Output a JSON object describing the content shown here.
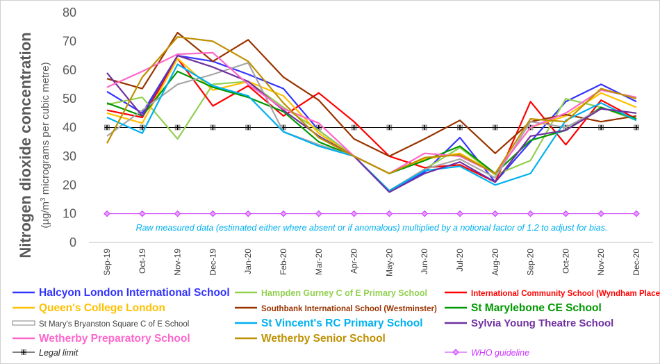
{
  "chart_data": {
    "type": "line",
    "ylabel_main": "Nitrogen dioxide concentration",
    "ylabel_unit_prefix": "(µg/m",
    "ylabel_unit_sup": "3",
    "ylabel_unit_suffix": " micrograms per cubic metre)",
    "ylim": [
      0,
      80
    ],
    "yticks": [
      0,
      10,
      20,
      30,
      40,
      50,
      60,
      70,
      80
    ],
    "categories": [
      "Sep-19",
      "Oct-19",
      "Nov-19",
      "Dec-19",
      "Jan-20",
      "Feb-20",
      "Mar-20",
      "Apr-20",
      "May-20",
      "Jun-20",
      "Jul-20",
      "Aug-20",
      "Sep-20",
      "Oct-20",
      "Nov-20",
      "Dec-20"
    ],
    "annotation": "Raw measured data (estimated either where absent or if anomalous) multiplied by a notional factor of 1.2 to adjust for bias.",
    "grid": false,
    "legend_position": "bottom",
    "series": [
      {
        "name": "Halcyon London International School",
        "color": "#3333ff",
        "values": [
          52.5,
          45,
          65,
          63,
          58.5,
          53.5,
          39,
          30,
          18,
          24.5,
          36.5,
          21,
          35,
          49,
          55,
          49
        ]
      },
      {
        "name": "Hampden Gurney C of E Primary School",
        "color": "#92d050",
        "values": [
          48,
          50.5,
          36,
          55,
          56,
          47,
          39,
          30,
          18,
          25.5,
          33,
          23.5,
          28.5,
          50,
          47,
          42.5
        ]
      },
      {
        "name": "International Community School (Wyndham Place)",
        "color": "#ff0000",
        "values": [
          46,
          43.5,
          64,
          47.5,
          54.5,
          44,
          52,
          42,
          30,
          26,
          27,
          21,
          49,
          34,
          49.5,
          43
        ]
      },
      {
        "name": "Queen's College London",
        "color": "#ffc000",
        "values": [
          45,
          41.5,
          64,
          53,
          56,
          51,
          38,
          30,
          24,
          29,
          31,
          24,
          40,
          44,
          52,
          47
        ]
      },
      {
        "name": "Southbank International School (Westminster)",
        "color": "#993300",
        "values": [
          57,
          53.5,
          73,
          63,
          70.5,
          57.5,
          49.5,
          36,
          30,
          36,
          42.5,
          31,
          42,
          44.5,
          42,
          44
        ]
      },
      {
        "name": "St Marylebone CE School",
        "color": "#009900",
        "values": [
          48.5,
          44,
          59.5,
          54,
          50.5,
          45.5,
          35,
          30,
          24,
          28.5,
          33.5,
          24,
          35.5,
          39,
          47,
          43
        ]
      },
      {
        "name": "St Mary's Bryanston Square C of E School",
        "color": "#a6a6a6",
        "values": [
          37,
          46,
          55,
          58.5,
          62.5,
          38.5,
          34,
          30,
          18,
          25.5,
          29,
          22.5,
          42,
          40,
          46.5,
          45
        ]
      },
      {
        "name": "St Vincent's RC Primary School",
        "color": "#00b0f0",
        "values": [
          43.5,
          38,
          62,
          54.5,
          51,
          38.5,
          33.5,
          30,
          18,
          25,
          26.5,
          20,
          24,
          42.5,
          48.5,
          42.5
        ]
      },
      {
        "name": "Sylvia Young Theatre School",
        "color": "#7030a0",
        "values": [
          59,
          44,
          65,
          61,
          56,
          46,
          37,
          30,
          17.5,
          24,
          28,
          21,
          37,
          39,
          46.5,
          45
        ]
      },
      {
        "name": "Wetherby Preparatory School",
        "color": "#ff66cc",
        "values": [
          54,
          59.5,
          65.5,
          66,
          55,
          46.5,
          41.5,
          30,
          24,
          31,
          30,
          24,
          40,
          45,
          53,
          50.5
        ]
      },
      {
        "name": "Wetherby Senior School",
        "color": "#bf9000",
        "values": [
          34.5,
          57.5,
          71.5,
          70,
          63,
          48.5,
          36.5,
          30,
          24,
          29.5,
          30.5,
          24,
          43,
          42,
          53.5,
          50
        ]
      },
      {
        "name": "Legal limit",
        "color": "#000000",
        "marker": "cross",
        "values": [
          40,
          40,
          40,
          40,
          40,
          40,
          40,
          40,
          40,
          40,
          40,
          40,
          40,
          40,
          40,
          40
        ]
      },
      {
        "name": "WHO guideline",
        "color": "#cc33ff",
        "marker": "diamond",
        "values": [
          10,
          10,
          10,
          10,
          10,
          10,
          10,
          10,
          10,
          10,
          10,
          10,
          10,
          10,
          10,
          10
        ]
      }
    ]
  }
}
